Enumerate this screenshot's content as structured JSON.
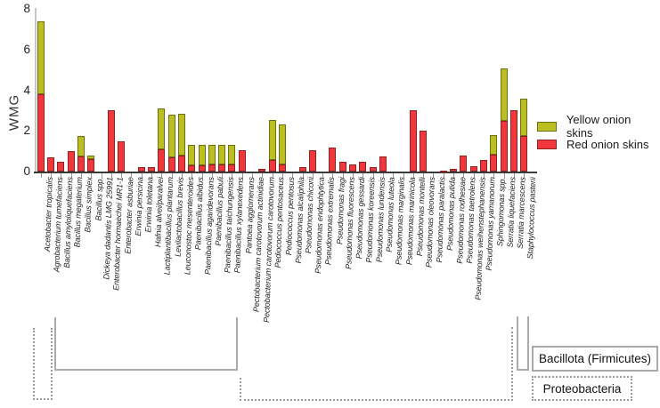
{
  "figure": {
    "ylabel": "WMG",
    "group_boxes": {
      "bacillota_label": "Bacillota (Firmicutes)",
      "proteobacteria_label": "Proteobacteria"
    }
  },
  "chart_data": {
    "type": "bar",
    "subtype": "stacked-vertical",
    "title": "",
    "xlabel": "",
    "ylabel": "WMG",
    "ylim": [
      0,
      8
    ],
    "yticks": [
      0,
      2,
      4,
      6,
      8
    ],
    "grid": false,
    "legend_position": "right",
    "legend": [
      {
        "label": "Yellow onion skins",
        "color": "#bcbf22",
        "border": "#6e7016"
      },
      {
        "label": "Red onion skins",
        "color": "#f2373c",
        "border": "#8a2424"
      }
    ],
    "categories": [
      "Acetobacter tropicalis",
      "Agrobacterium tumefaciens",
      "Bacillus amyloliquefaciens",
      "Bacillus megaterium",
      "Bacillus simplex",
      "Bacillus spp.",
      "Dickeya dadantis LMG 25991",
      "Enterobacter hormaechei MR1-1",
      "Enterobacter asburiae",
      "Erwinia persicina",
      "Erwinia toletana",
      "Hafnia alvei/paralvei",
      "Lactiplantibacillus plantarum",
      "Levilactobacillus brevis",
      "Leuconostoc mesenteroides",
      "Paenibacillus albidus",
      "Paenibacillus agaridevorans",
      "Paenibacillus pabuli",
      "Paenibacillus taichungensis",
      "Paenibacillus xylanexedens",
      "Pantoea agglomerans",
      "Pectobacterium carotovorum actinidiae",
      "Pectobacterium carotovorum carotovorum",
      "Pediococcus pentosaceus",
      "Pediococcus pentosus",
      "Pseudomonas alcaliphila",
      "Pseudomonas chicorii",
      "Pseudomonas endophtytica",
      "Pseudomonas extremalis",
      "Pseudomonas fragi",
      "Pseudomonas fluorescens",
      "Pseudomonas gessardi",
      "Pseudomonas koreensis",
      "Pseudomonas lundensis",
      "Pseudomonas luteola",
      "Pseudomonas marginalis",
      "Pseudomonas marinicola",
      "Pseudomonas montelli",
      "Pseudomonas oleovorans",
      "Pseudomonas paralactis",
      "Pseudomonas putida",
      "Pseudomonas rodhesiae",
      "Pseudomonas taetrolens",
      "Pseudomonas weihenstephanensis",
      "Pseudomonas yamanorum",
      "Sphingomonas spp.",
      "Serratia liquefaciens",
      "Serratia marcescens",
      "Staphylococcus pasterii"
    ],
    "series": [
      {
        "name": "Red onion skins",
        "color": "#f2373c",
        "border": "#8a2424",
        "values": [
          3.8,
          0.7,
          0.5,
          1.0,
          0.75,
          0.6,
          0,
          3.0,
          1.5,
          0,
          0.2,
          0.2,
          1.1,
          0.7,
          0.8,
          0.3,
          0.3,
          0.35,
          0.35,
          0.35,
          1.05,
          0,
          0.15,
          0.55,
          0.35,
          0,
          0.2,
          1.05,
          0,
          1.2,
          0.5,
          0.35,
          0.5,
          0.2,
          0.75,
          0,
          0,
          3.0,
          2.0,
          0,
          0.05,
          0.15,
          0.8,
          0.25,
          0.55,
          0.85,
          2.5,
          3.0,
          1.75
        ]
      },
      {
        "name": "Yellow onion skins",
        "color": "#bcbf22",
        "border": "#6e7016",
        "values": [
          3.6,
          0,
          0,
          0,
          1.0,
          0.2,
          0,
          0,
          0,
          0,
          0,
          0,
          2.0,
          2.1,
          2.05,
          1.0,
          1.0,
          0.95,
          0.95,
          0.95,
          0,
          0,
          0,
          2.0,
          1.95,
          0,
          0,
          0,
          0,
          0,
          0,
          0,
          0,
          0,
          0,
          0,
          0,
          0,
          0,
          0,
          0,
          0,
          0,
          0,
          0,
          0.95,
          2.55,
          0,
          1.85
        ]
      }
    ],
    "annotations": {
      "groups": [
        {
          "label": "Bacillota (Firmicutes)",
          "bracket_style": "solid"
        },
        {
          "label": "Proteobacteria",
          "bracket_style": "dashed"
        }
      ]
    }
  }
}
